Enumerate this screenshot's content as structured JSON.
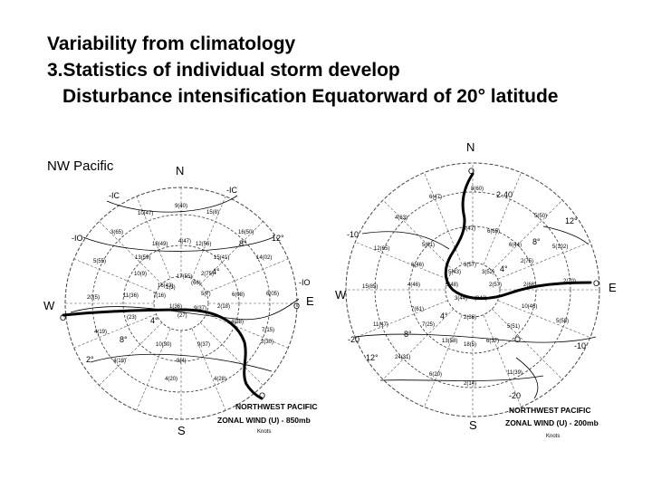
{
  "title": {
    "line1": "Variability from climatology",
    "line2": "3.Statistics of individual storm develop",
    "line3": "Disturbance intensification Equatorward of 20° latitude"
  },
  "region_label": "NW Pacific",
  "diagrams": [
    {
      "directions": {
        "n": "N",
        "s": "S",
        "e": "E",
        "w": "W"
      },
      "caption": {
        "line1": "NORTHWEST  PACIFIC",
        "line2": "ZONAL WIND (U) - 850mb",
        "line3": "Knots"
      },
      "contour_labels": [
        "-IC",
        "-IC",
        "-IO",
        "-IO",
        "12°",
        "8°",
        "4°",
        "4°",
        "8°",
        "2°",
        "O",
        "O",
        "O"
      ],
      "values": [
        "9(40)",
        "10(47)",
        "15(8)",
        "3(65)",
        "18(49)",
        "4(47)",
        "12(56)",
        "16(50)",
        "5(55)",
        "13(59)",
        "15(41)",
        "14(02)",
        "10(9)",
        "1(3)",
        "17(55)",
        "2(75)",
        "20(5)",
        "11(36)",
        "7(16)",
        "16(43)",
        "(66)",
        "6(08)",
        "6(05)",
        "5(7)",
        "1(36)",
        "9(37)",
        "2(18)",
        "(27)",
        "(23)",
        "4(38)",
        "4(19)",
        "7(15)",
        "10(30)",
        "9(37)",
        "2(30)",
        "4(18)",
        "9(4)",
        "4(20)",
        "4(28)"
      ]
    },
    {
      "directions": {
        "n": "N",
        "s": "S",
        "e": "E",
        "w": "W"
      },
      "caption": {
        "line1": "NORTHWEST  PACIFIC",
        "line2": "ZONAL WIND (U) - 200mb",
        "line3": "Knots"
      },
      "contour_labels": [
        "O",
        "2·40",
        "12°",
        "-10",
        "8°",
        "4°",
        "4°",
        "8°",
        "12°",
        "-20",
        "-20",
        "-10",
        "O",
        "O"
      ],
      "values": [
        "8(60)",
        "6(47)",
        "5(50)",
        "4(63)",
        "3(47)",
        "6(65)",
        "12(65)",
        "5(81)",
        "6(44)",
        "5(102)",
        "2(75)",
        "6(46)",
        "3(57)",
        "5(43)",
        "3(52)",
        "15(85)",
        "4(46)",
        "5(48)",
        "2(57)",
        "2(68)",
        "2(70)",
        "3(44)",
        "(042)",
        "10(46)",
        "7(61)",
        "2(36)",
        "11(47)",
        "7(25)",
        "5(51)",
        "5(58)",
        "13(58)",
        "18(5)",
        "6(37)",
        "24(31)",
        "6(20)",
        "11(39)",
        "2(14)"
      ]
    }
  ]
}
